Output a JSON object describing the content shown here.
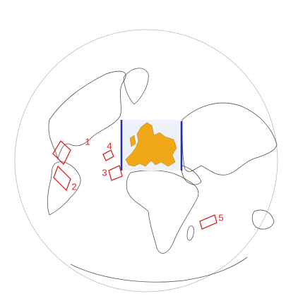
{
  "map": {
    "regions": [
      {
        "label": "1"
      },
      {
        "label": "2"
      },
      {
        "label": "3"
      },
      {
        "label": "4"
      },
      {
        "label": "5"
      }
    ]
  }
}
